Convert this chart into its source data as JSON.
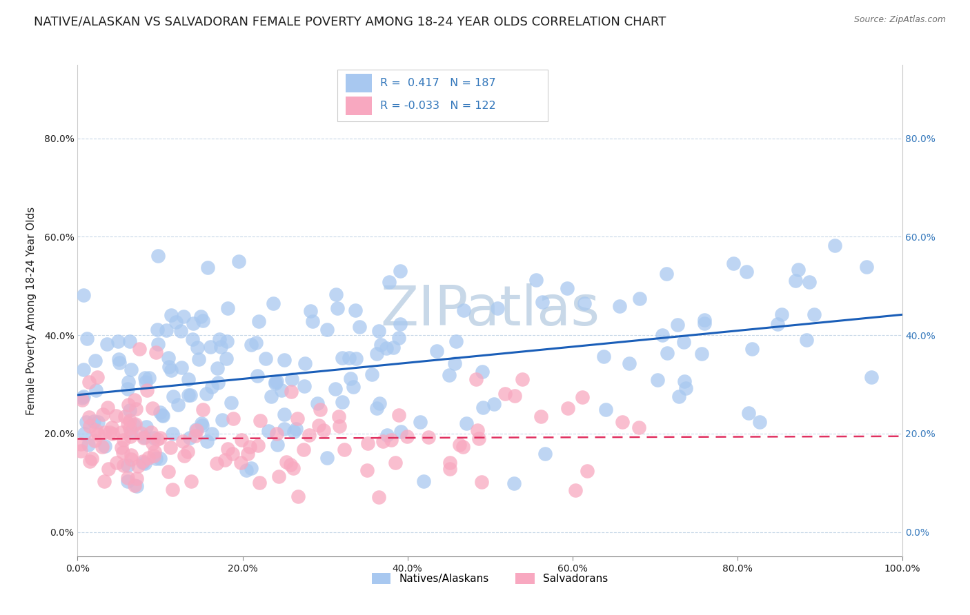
{
  "title": "NATIVE/ALASKAN VS SALVADORAN FEMALE POVERTY AMONG 18-24 YEAR OLDS CORRELATION CHART",
  "source": "Source: ZipAtlas.com",
  "ylabel": "Female Poverty Among 18-24 Year Olds",
  "xlim": [
    0.0,
    1.0
  ],
  "ylim": [
    -0.05,
    0.95
  ],
  "xticks": [
    0.0,
    0.2,
    0.4,
    0.6,
    0.8,
    1.0
  ],
  "xtick_labels": [
    "0.0%",
    "20.0%",
    "40.0%",
    "60.0%",
    "80.0%",
    "100.0%"
  ],
  "yticks": [
    0.0,
    0.2,
    0.4,
    0.6,
    0.8
  ],
  "ytick_labels": [
    "0.0%",
    "20.0%",
    "40.0%",
    "60.0%",
    "80.0%"
  ],
  "legend_labels": [
    "Natives/Alaskans",
    "Salvadorans"
  ],
  "r_native": 0.417,
  "n_native": 187,
  "r_salvadoran": -0.033,
  "n_salvadoran": 122,
  "native_color": "#a8c8f0",
  "salvadoran_color": "#f8a8c0",
  "native_line_color": "#1a5eb8",
  "salvadoran_line_color": "#e03060",
  "background_color": "#ffffff",
  "grid_color": "#c8d8e8",
  "title_color": "#202020",
  "text_color": "#202020",
  "source_color": "#707070",
  "watermark_color": "#c8d8e8",
  "legend_r_color": "#3377bb",
  "right_tick_color": "#3377bb",
  "title_fontsize": 13,
  "axis_label_fontsize": 11,
  "tick_fontsize": 10,
  "legend_fontsize": 11
}
